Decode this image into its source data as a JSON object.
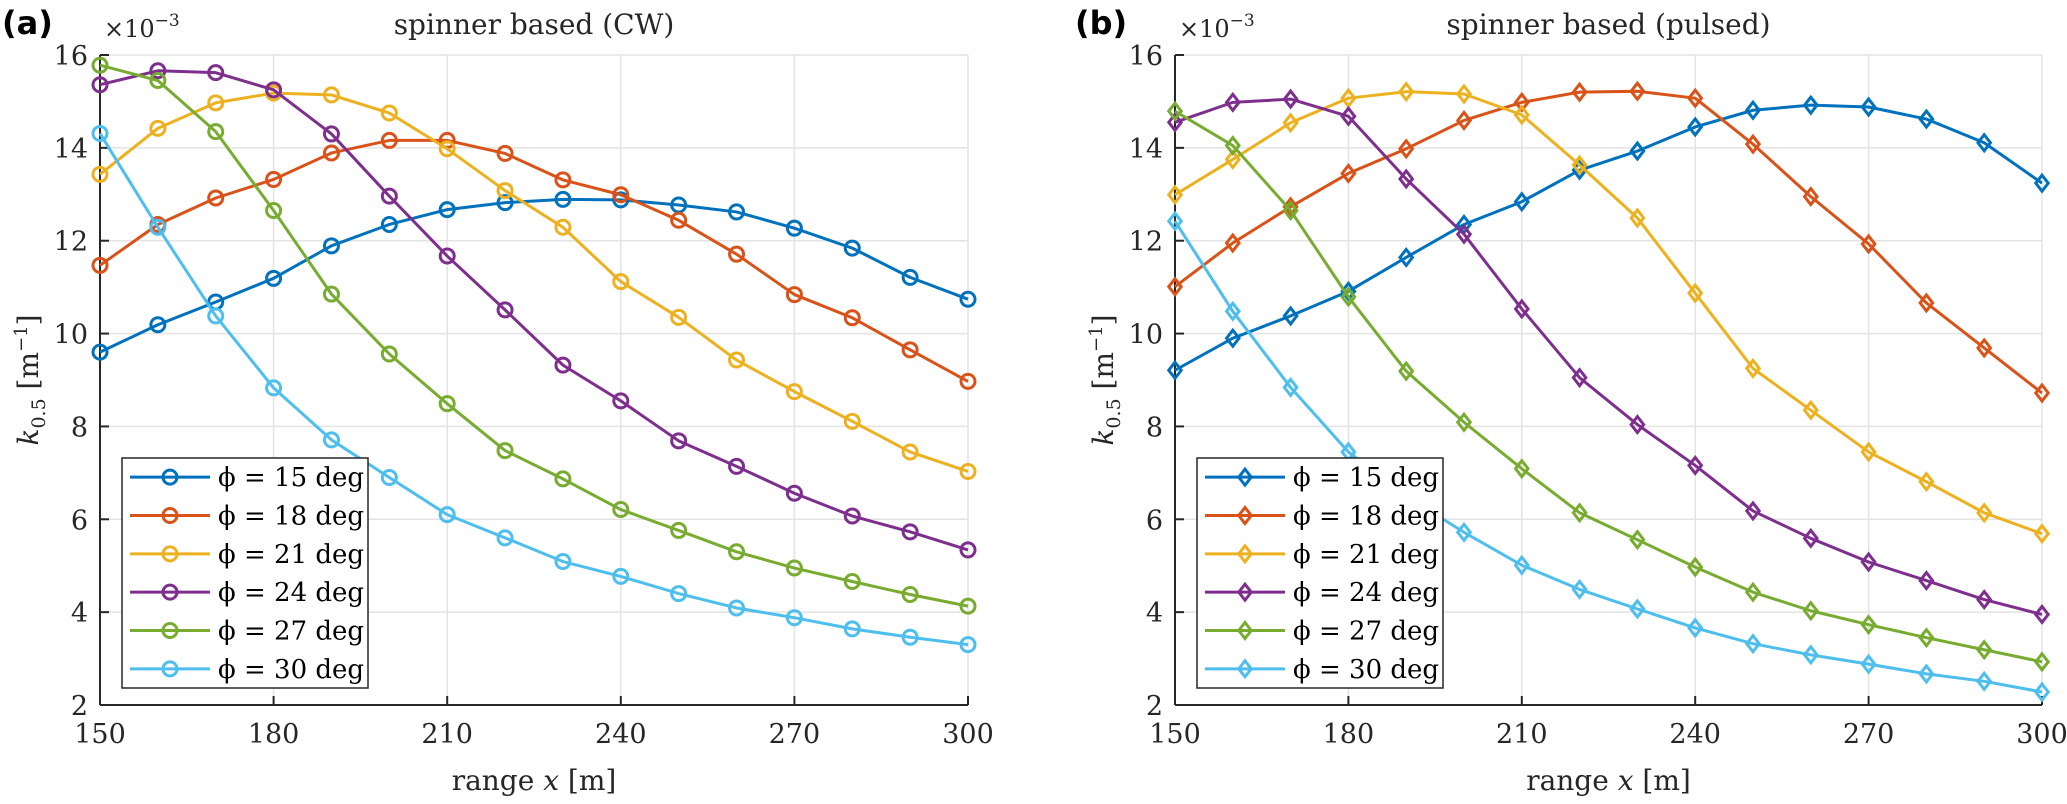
{
  "chart_data": [
    {
      "type": "line",
      "panel_label": "(a)",
      "title": "spinner based (CW)",
      "xlabel": "range x [m]",
      "xlabel_parts": {
        "pre": "range ",
        "var": "x",
        "post": " [m]"
      },
      "ylabel": "k_0.5 [m^-1]",
      "ylabel_parts": {
        "var": "k",
        "sub": "0.5",
        "unit": "[m",
        "sup": "−1",
        "close": "]"
      },
      "y_multiplier": "×10",
      "y_multiplier_exp": "−3",
      "xlim": [
        150,
        300
      ],
      "ylim": [
        2,
        16
      ],
      "xticks": [
        150,
        180,
        210,
        240,
        270,
        300
      ],
      "yticks": [
        2,
        4,
        6,
        8,
        10,
        12,
        14,
        16
      ],
      "grid": true,
      "marker": "circle",
      "legend_position": "bottom-left",
      "x": [
        150,
        160,
        170,
        180,
        190,
        200,
        210,
        220,
        230,
        240,
        250,
        260,
        270,
        280,
        290,
        300
      ],
      "series": [
        {
          "name": "ϕ = 15 deg",
          "color": "#0072BD",
          "values": [
            9.6,
            10.19,
            10.68,
            11.19,
            11.89,
            12.35,
            12.67,
            12.82,
            12.89,
            12.88,
            12.77,
            12.62,
            12.27,
            11.84,
            11.21,
            10.74
          ]
        },
        {
          "name": "ϕ = 18 deg",
          "color": "#D95319",
          "values": [
            11.47,
            12.35,
            12.92,
            13.32,
            13.89,
            14.16,
            14.16,
            13.88,
            13.31,
            12.99,
            12.44,
            11.71,
            10.84,
            10.34,
            9.65,
            8.97
          ]
        },
        {
          "name": "ϕ = 21 deg",
          "color": "#EDB120",
          "values": [
            13.43,
            14.42,
            14.97,
            15.18,
            15.14,
            14.75,
            13.98,
            13.08,
            12.29,
            11.12,
            10.35,
            9.43,
            8.75,
            8.11,
            7.45,
            7.03
          ]
        },
        {
          "name": "ϕ = 24 deg",
          "color": "#7E2F8E",
          "values": [
            15.36,
            15.66,
            15.62,
            15.25,
            14.3,
            12.96,
            11.67,
            10.51,
            9.32,
            8.55,
            7.69,
            7.14,
            6.56,
            6.07,
            5.73,
            5.34
          ]
        },
        {
          "name": "ϕ = 27 deg",
          "color": "#77AC30",
          "values": [
            15.78,
            15.45,
            14.35,
            12.65,
            10.85,
            9.56,
            8.49,
            7.48,
            6.87,
            6.21,
            5.76,
            5.3,
            4.95,
            4.66,
            4.38,
            4.13
          ]
        },
        {
          "name": "ϕ = 30 deg",
          "color": "#4DBEEE",
          "values": [
            14.31,
            12.29,
            10.38,
            8.83,
            7.71,
            6.9,
            6.1,
            5.6,
            5.09,
            4.77,
            4.4,
            4.09,
            3.88,
            3.64,
            3.46,
            3.3
          ]
        }
      ]
    },
    {
      "type": "line",
      "panel_label": "(b)",
      "title": "spinner based (pulsed)",
      "xlabel": "range x [m]",
      "xlabel_parts": {
        "pre": "range ",
        "var": "x",
        "post": " [m]"
      },
      "ylabel": "k_0.5 [m^-1]",
      "ylabel_parts": {
        "var": "k",
        "sub": "0.5",
        "unit": "[m",
        "sup": "−1",
        "close": "]"
      },
      "y_multiplier": "×10",
      "y_multiplier_exp": "−3",
      "xlim": [
        150,
        300
      ],
      "ylim": [
        2,
        16
      ],
      "xticks": [
        150,
        180,
        210,
        240,
        270,
        300
      ],
      "yticks": [
        2,
        4,
        6,
        8,
        10,
        12,
        14,
        16
      ],
      "grid": true,
      "marker": "diamond",
      "legend_position": "bottom-left",
      "x": [
        150,
        160,
        170,
        180,
        190,
        200,
        210,
        220,
        230,
        240,
        250,
        260,
        270,
        280,
        290,
        300
      ],
      "series": [
        {
          "name": "ϕ = 15 deg",
          "color": "#0072BD",
          "values": [
            9.21,
            9.9,
            10.38,
            10.91,
            11.64,
            12.35,
            12.84,
            13.52,
            13.93,
            14.45,
            14.81,
            14.92,
            14.88,
            14.62,
            14.11,
            13.24
          ]
        },
        {
          "name": "ϕ = 18 deg",
          "color": "#D95319",
          "values": [
            11.01,
            11.95,
            12.73,
            13.45,
            13.98,
            14.59,
            14.98,
            15.2,
            15.22,
            15.07,
            14.08,
            12.95,
            11.93,
            10.66,
            9.69,
            8.72
          ]
        },
        {
          "name": "ϕ = 21 deg",
          "color": "#EDB120",
          "values": [
            12.99,
            13.75,
            14.54,
            15.07,
            15.21,
            15.16,
            14.71,
            13.63,
            12.49,
            10.87,
            9.25,
            8.35,
            7.45,
            6.81,
            6.14,
            5.69
          ]
        },
        {
          "name": "ϕ = 24 deg",
          "color": "#7E2F8E",
          "values": [
            14.55,
            14.98,
            15.05,
            14.68,
            13.33,
            12.14,
            10.53,
            9.05,
            8.04,
            7.16,
            6.18,
            5.59,
            5.08,
            4.68,
            4.27,
            3.95
          ]
        },
        {
          "name": "ϕ = 27 deg",
          "color": "#77AC30",
          "values": [
            14.79,
            14.05,
            12.65,
            10.79,
            9.19,
            8.09,
            7.09,
            6.14,
            5.56,
            4.97,
            4.43,
            4.03,
            3.73,
            3.45,
            3.19,
            2.93
          ]
        },
        {
          "name": "ϕ = 30 deg",
          "color": "#4DBEEE",
          "values": [
            12.42,
            10.48,
            8.84,
            7.45,
            6.5,
            5.72,
            5.01,
            4.49,
            4.07,
            3.66,
            3.32,
            3.08,
            2.88,
            2.67,
            2.51,
            2.28
          ]
        }
      ]
    }
  ]
}
